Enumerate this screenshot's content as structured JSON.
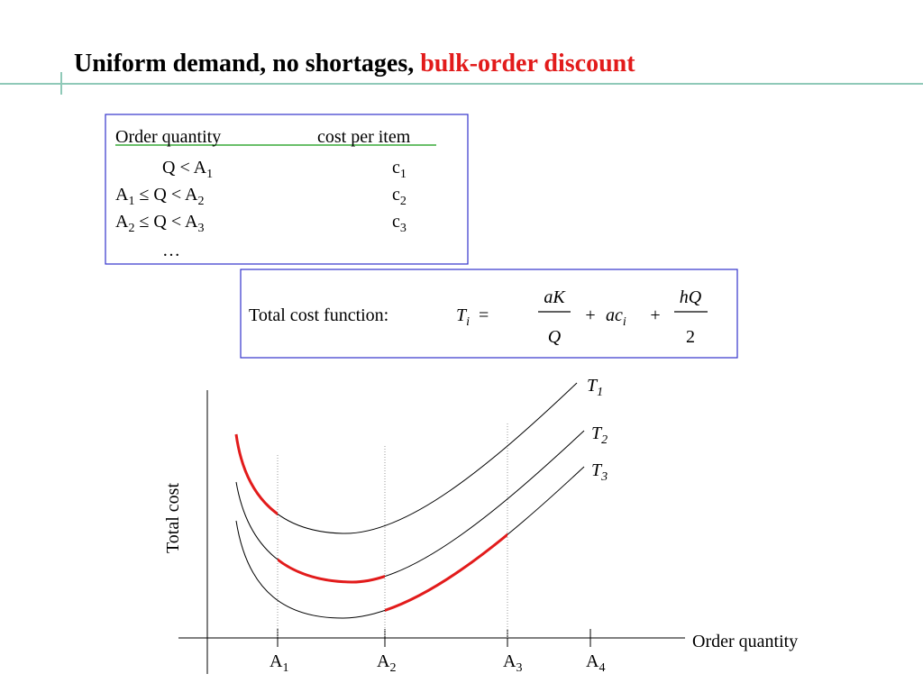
{
  "title": {
    "main": "Uniform demand, no shortages,",
    "highlight": "bulk-order discount"
  },
  "price_table": {
    "headers": [
      "Order quantity",
      "cost per item"
    ],
    "rows": [
      {
        "condition": [
          "Q < A",
          "1"
        ],
        "cost": [
          "c",
          "1"
        ]
      },
      {
        "condition": [
          "A",
          "1",
          " ≤ Q < A",
          "2"
        ],
        "cost": [
          "c",
          "2"
        ]
      },
      {
        "condition": [
          "A",
          "2",
          " ≤ Q < A",
          "3"
        ],
        "cost": [
          "c",
          "3"
        ]
      },
      {
        "condition": [
          "…"
        ]
      }
    ]
  },
  "formula": {
    "label": "Total cost function:",
    "lhs": [
      "T",
      "i"
    ],
    "equals": "=",
    "fraction1": {
      "numerator": "aK",
      "denominator": "Q"
    },
    "operators": [
      "+",
      "+"
    ],
    "term2": [
      "ac",
      "i"
    ],
    "fraction2": {
      "numerator": "hQ",
      "denominator": "2"
    }
  },
  "diagram": {
    "y_axis_label": "Total cost",
    "x_axis_label": "Order quantity",
    "x_ticks": [
      [
        "A",
        "1"
      ],
      [
        "A",
        "2"
      ],
      [
        "A",
        "3"
      ],
      [
        "A",
        "4"
      ]
    ],
    "curves": [
      [
        "T",
        "1"
      ],
      [
        "T",
        "2"
      ],
      [
        "T",
        "3"
      ]
    ]
  }
}
